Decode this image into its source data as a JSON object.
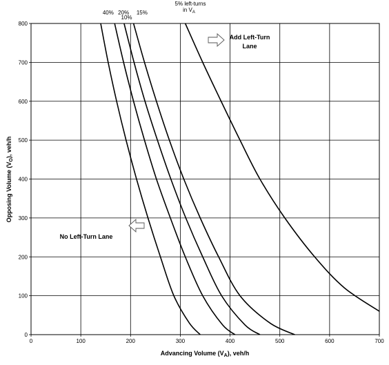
{
  "chart_data": {
    "type": "line",
    "title": "",
    "xlabel": "Advancing Volume (V",
    "xlabel_sub": "A",
    "xlabel_tail": "), veh/h",
    "ylabel": "Opposing Volume (V",
    "ylabel_sub": "O",
    "ylabel_tail": "), veh/h",
    "xlim": [
      0,
      700
    ],
    "ylim": [
      0,
      800
    ],
    "x_ticks": [
      0,
      100,
      200,
      300,
      400,
      500,
      600,
      700
    ],
    "y_ticks": [
      0,
      100,
      200,
      300,
      400,
      500,
      600,
      700,
      800
    ],
    "grid": true,
    "series": [
      {
        "name": "40%",
        "points": [
          [
            140,
            800
          ],
          [
            155,
            700
          ],
          [
            172,
            600
          ],
          [
            191,
            500
          ],
          [
            212,
            400
          ],
          [
            235,
            300
          ],
          [
            260,
            200
          ],
          [
            287,
            100
          ],
          [
            318,
            30
          ],
          [
            340,
            0
          ]
        ]
      },
      {
        "name": "20%",
        "points": [
          [
            168,
            800
          ],
          [
            186,
            700
          ],
          [
            206,
            600
          ],
          [
            228,
            500
          ],
          [
            252,
            400
          ],
          [
            280,
            300
          ],
          [
            310,
            200
          ],
          [
            345,
            100
          ],
          [
            385,
            25
          ],
          [
            410,
            0
          ]
        ]
      },
      {
        "name": "10%",
        "points": [
          [
            187,
            800
          ],
          [
            207,
            700
          ],
          [
            229,
            600
          ],
          [
            254,
            500
          ],
          [
            281,
            400
          ],
          [
            311,
            300
          ],
          [
            345,
            200
          ],
          [
            383,
            100
          ],
          [
            430,
            25
          ],
          [
            460,
            0
          ]
        ]
      },
      {
        "name": "15%",
        "points": [
          [
            206,
            800
          ],
          [
            228,
            700
          ],
          [
            252,
            600
          ],
          [
            278,
            500
          ],
          [
            307,
            400
          ],
          [
            340,
            300
          ],
          [
            377,
            200
          ],
          [
            420,
            100
          ],
          [
            480,
            30
          ],
          [
            530,
            0
          ]
        ]
      },
      {
        "name": "5% left-turns in V",
        "points": [
          [
            310,
            800
          ],
          [
            345,
            700
          ],
          [
            382,
            600
          ],
          [
            420,
            500
          ],
          [
            460,
            400
          ],
          [
            510,
            300
          ],
          [
            570,
            200
          ],
          [
            630,
            120
          ],
          [
            700,
            60
          ]
        ]
      }
    ],
    "curve_labels": [
      {
        "text": "40%",
        "x": 155
      },
      {
        "text": "20%",
        "x": 186
      },
      {
        "text": "10%",
        "x": 192
      },
      {
        "text": "15%",
        "x": 223
      }
    ],
    "top_note_line1": "5% left-turns",
    "top_note_line2": "in V",
    "top_note_sub": "A",
    "annotations": {
      "add_line1": "Add Left-Turn",
      "add_line2": "Lane",
      "no": "No Left-Turn Lane"
    }
  }
}
